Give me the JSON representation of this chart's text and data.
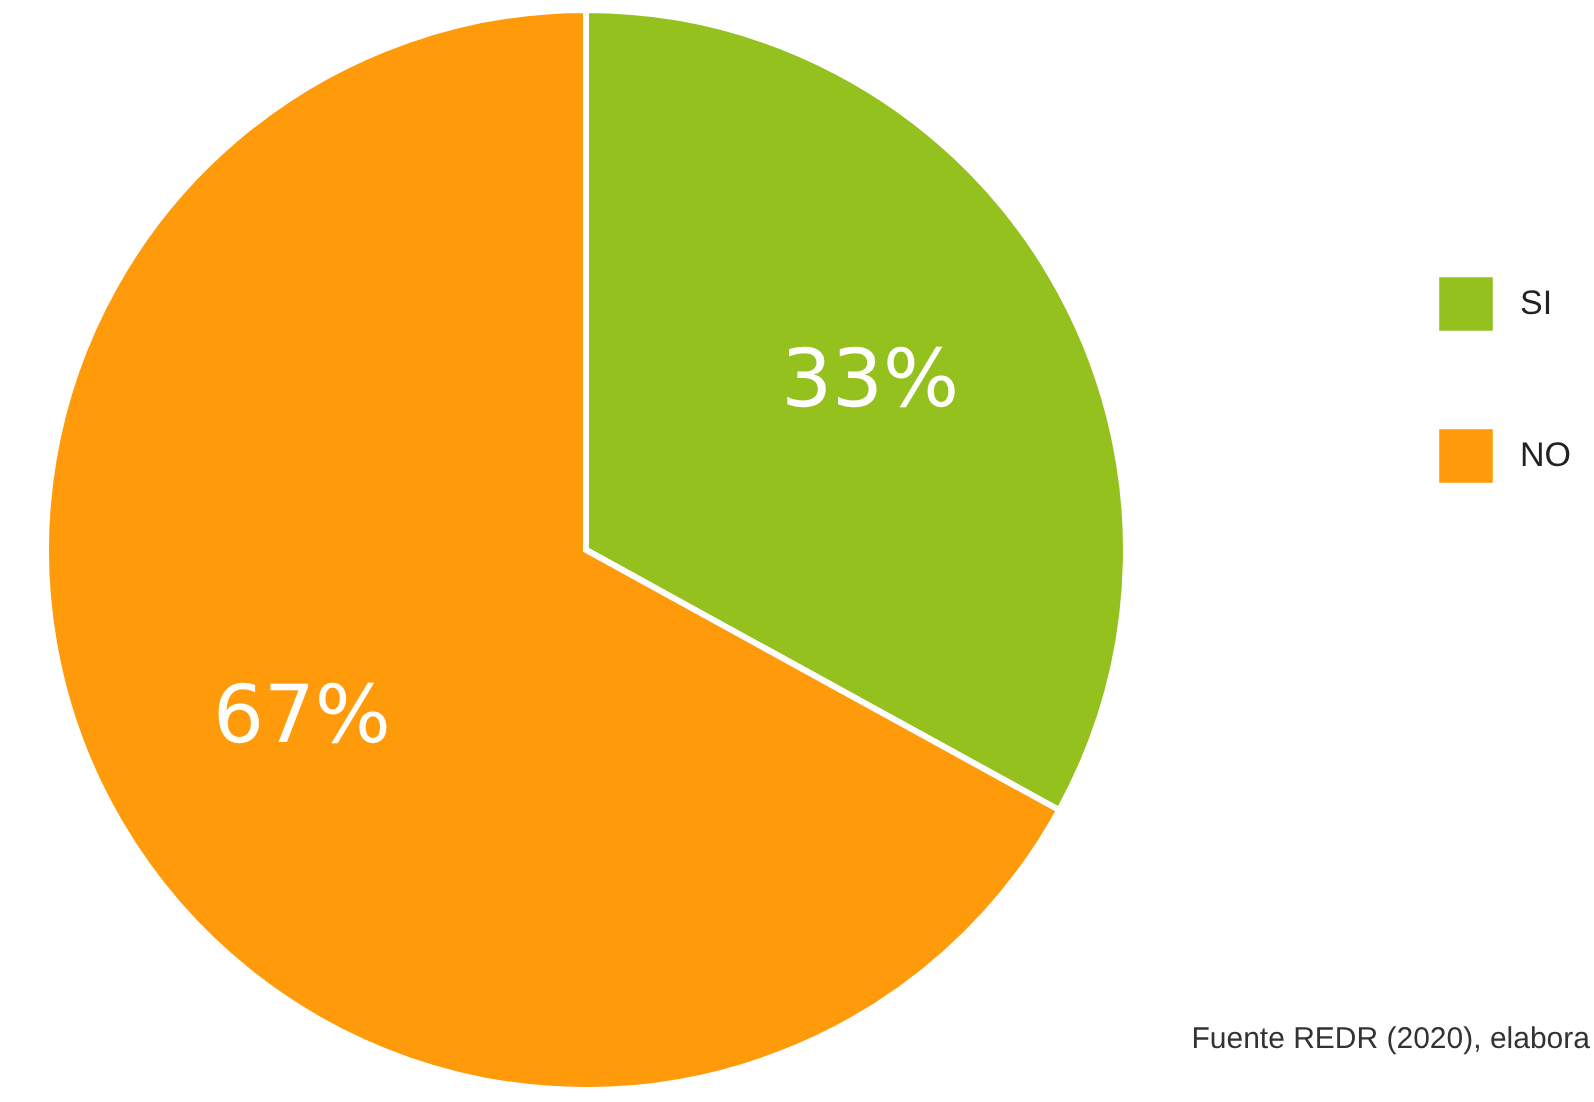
{
  "chart_data": {
    "type": "pie",
    "categories": [
      "SI",
      "NO"
    ],
    "values": [
      33,
      67
    ],
    "colors": [
      "#95c11f",
      "#ff9a0a"
    ],
    "value_labels": [
      "33%",
      "67%"
    ],
    "legend": "right",
    "annotations": [
      "Fuente REDR (2020), elabora"
    ]
  }
}
